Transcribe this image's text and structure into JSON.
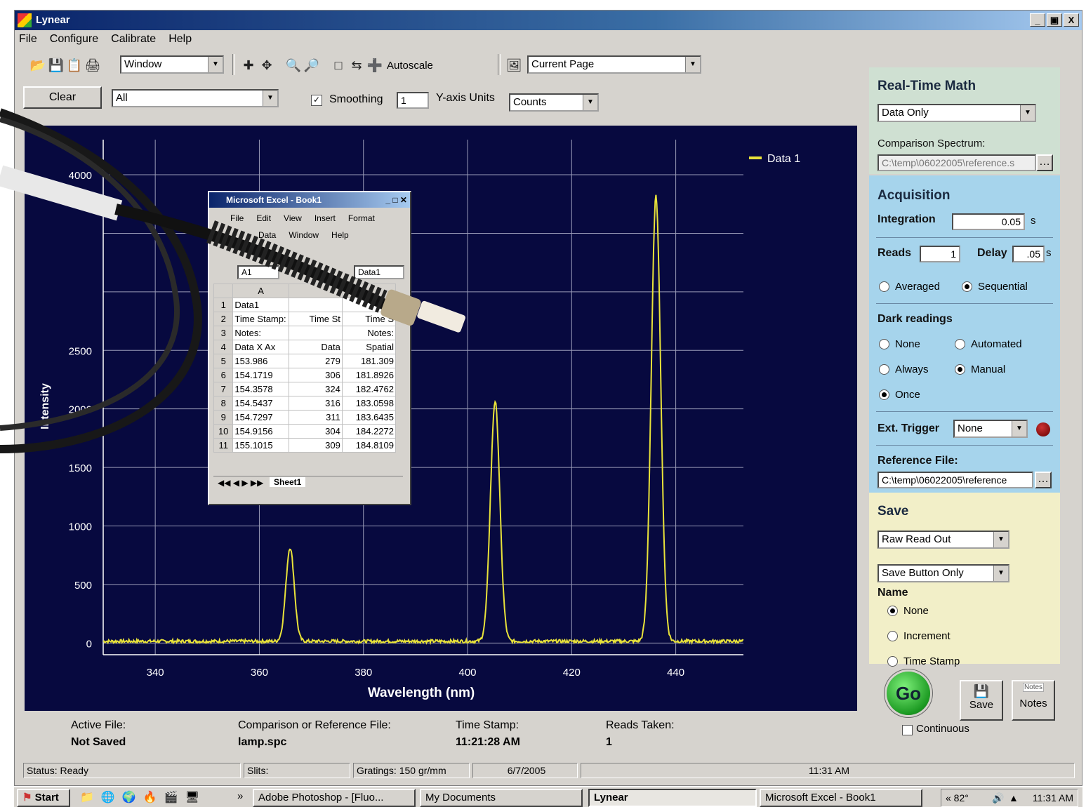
{
  "window": {
    "title": "Lynear",
    "minimize": "_",
    "maximize": "ф",
    "close": "X"
  },
  "menu": [
    "File",
    "Configure",
    "Calibrate",
    "Help"
  ],
  "toolbar": {
    "window_combo": "Window",
    "autoscale": "Autoscale",
    "page_combo": "Current Page"
  },
  "toolbar2": {
    "clear": "Clear",
    "filter": "All",
    "smoothing_label": "Smoothing",
    "smoothing_checked": true,
    "smoothing_value": "1",
    "yaxis_label": "Y-axis Units",
    "yaxis_value": "Counts"
  },
  "chart_data": {
    "type": "line",
    "xlabel": "Wavelength (nm)",
    "ylabel": "Intensity",
    "xlim": [
      330,
      453
    ],
    "ylim": [
      -100,
      4300
    ],
    "xticks": [
      340,
      360,
      380,
      400,
      420,
      440
    ],
    "yticks": [
      0,
      500,
      1000,
      1500,
      2000,
      2500,
      3000,
      3500,
      4000
    ],
    "ytick_labels": [
      "0",
      "500",
      "1000",
      "1500",
      "2000",
      "2500",
      "",
      "",
      "4000"
    ],
    "legend": "top-right",
    "series": [
      {
        "name": "Data 1",
        "color": "#e8e23a",
        "peaks": [
          {
            "x": 365.9,
            "y": 800,
            "w": 0.8
          },
          {
            "x": 405.3,
            "y": 2050,
            "w": 0.9
          },
          {
            "x": 436.2,
            "y": 3800,
            "w": 0.9
          }
        ],
        "baseline": 15
      }
    ]
  },
  "math": {
    "title": "Real-Time Math",
    "mode": "Data Only",
    "comparison_label": "Comparison Spectrum:",
    "comparison_path": "C:\\temp\\06022005\\reference.s"
  },
  "acquisition": {
    "title": "Acquisition",
    "integration_label": "Integration",
    "integration_value": "0.05",
    "integration_unit": "s",
    "reads_label": "Reads",
    "reads_value": "1",
    "delay_label": "Delay",
    "delay_value": ".05",
    "delay_unit": "s",
    "averaged": "Averaged",
    "sequential": "Sequential",
    "dark_label": "Dark readings",
    "dark_none": "None",
    "dark_automated": "Automated",
    "dark_always": "Always",
    "dark_manual": "Manual",
    "dark_once": "Once",
    "trigger_label": "Ext. Trigger",
    "trigger_value": "None",
    "reference_label": "Reference File:",
    "reference_path": "C:\\temp\\06022005\\reference"
  },
  "save": {
    "title": "Save",
    "format": "Raw Read Out",
    "mode": "Save Button Only",
    "name_label": "Name",
    "name_none": "None",
    "name_increment": "Increment",
    "name_timestamp": "Time Stamp"
  },
  "actions": {
    "go": "Go",
    "save": "Save",
    "notes": "Notes",
    "notes_small": "Notes",
    "continuous": "Continuous"
  },
  "fileinfo": {
    "active_label": "Active File:",
    "active_value": "Not Saved",
    "reference_label": "Comparison or Reference File:",
    "reference_value": "lamp.spc",
    "time_label": "Time Stamp:",
    "time_value": "11:21:28 AM",
    "reads_label": "Reads Taken:",
    "reads_value": "1"
  },
  "status": {
    "status": "Status:  Ready",
    "slits": "Slits:",
    "gratings": "Gratings: 150 gr/mm",
    "date": "6/7/2005",
    "time": "11:31 AM"
  },
  "taskbar": {
    "start": "Start",
    "quick_more": "»",
    "tasks": [
      "Adobe Photoshop - [Fluo...",
      "My Documents",
      "Lynear",
      "Microsoft Excel - Book1"
    ],
    "tray": "« 82°",
    "clock": "11:31 AM"
  },
  "excel": {
    "title": "Microsoft Excel - Book1",
    "menu1": [
      "File",
      "Edit",
      "View",
      "Insert",
      "Format"
    ],
    "menu2": [
      "Data",
      "Window",
      "Help"
    ],
    "namebox": "A1",
    "formula": "Data1",
    "col_a": "A",
    "rows": [
      {
        "n": "1",
        "a": "Data1",
        "b": "",
        "c": ""
      },
      {
        "n": "2",
        "a": "Time Stamp:",
        "b": "Time St",
        "c": "Time S"
      },
      {
        "n": "3",
        "a": "Notes:",
        "b": "",
        "c": "Notes:"
      },
      {
        "n": "4",
        "a": "Data X Ax",
        "b": "Data",
        "c": "Spatial"
      },
      {
        "n": "5",
        "a": "153.986",
        "b": "279",
        "c": "181.309"
      },
      {
        "n": "6",
        "a": "154.1719",
        "b": "306",
        "c": "181.8926"
      },
      {
        "n": "7",
        "a": "154.3578",
        "b": "324",
        "c": "182.4762"
      },
      {
        "n": "8",
        "a": "154.5437",
        "b": "316",
        "c": "183.0598"
      },
      {
        "n": "9",
        "a": "154.7297",
        "b": "311",
        "c": "183.6435"
      },
      {
        "n": "10",
        "a": "154.9156",
        "b": "304",
        "c": "184.2272"
      },
      {
        "n": "11",
        "a": "155.1015",
        "b": "309",
        "c": "184.8109"
      }
    ],
    "sheet_tab": "Sheet1"
  }
}
